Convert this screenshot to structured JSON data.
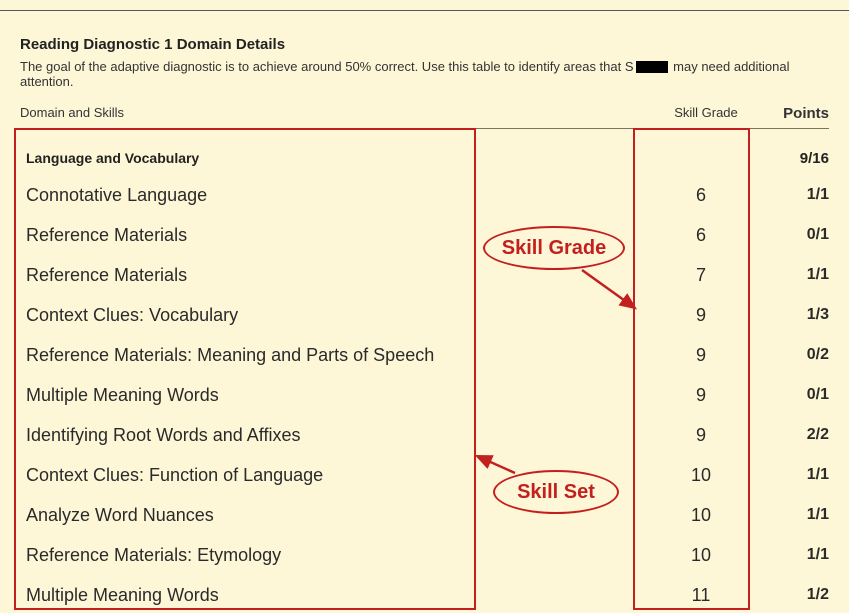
{
  "title": "Reading Diagnostic 1 Domain Details",
  "description_pre": "The goal of the adaptive diagnostic is to achieve around 50% correct. Use this table to identify areas that S",
  "description_post": " may need additional attention.",
  "columns": {
    "domain": "Domain and Skills",
    "grade": "Skill Grade",
    "points": "Points"
  },
  "domain": {
    "name": "Language and Vocabulary",
    "totalPoints": "9/16"
  },
  "skills": [
    {
      "name": "Connotative Language",
      "grade": "6",
      "points": "1/1"
    },
    {
      "name": "Reference Materials",
      "grade": "6",
      "points": "0/1"
    },
    {
      "name": "Reference Materials",
      "grade": "7",
      "points": "1/1"
    },
    {
      "name": "Context Clues: Vocabulary",
      "grade": "9",
      "points": "1/3"
    },
    {
      "name": "Reference Materials: Meaning and Parts of Speech",
      "grade": "9",
      "points": "0/2"
    },
    {
      "name": "Multiple Meaning Words",
      "grade": "9",
      "points": "0/1"
    },
    {
      "name": "Identifying Root Words and Affixes",
      "grade": "9",
      "points": "2/2"
    },
    {
      "name": "Context Clues: Function of Language",
      "grade": "10",
      "points": "1/1"
    },
    {
      "name": "Analyze Word Nuances",
      "grade": "10",
      "points": "1/1"
    },
    {
      "name": "Reference Materials: Etymology",
      "grade": "10",
      "points": "1/1"
    },
    {
      "name": "Multiple Meaning Words",
      "grade": "11",
      "points": "1/2"
    }
  ],
  "annotations": {
    "skillGradeLabel": "Skill Grade",
    "skillSetLabel": "Skill Set",
    "boxColor": "#c41f1f",
    "background": "#fdf7d7"
  }
}
